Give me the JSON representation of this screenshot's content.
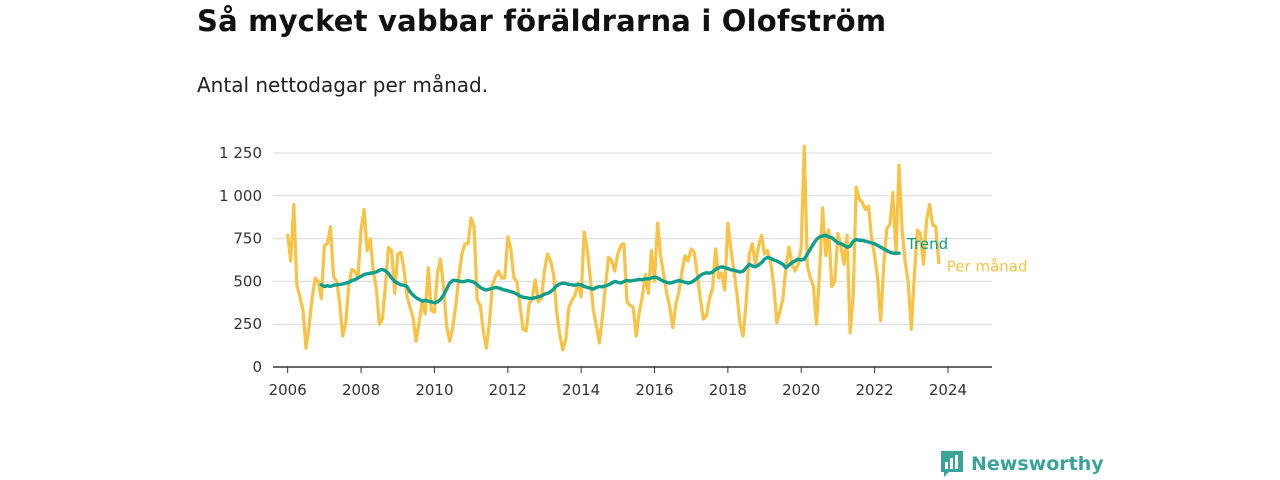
{
  "header": {
    "title": "Så mycket vabbar föräldrarna i Olofström",
    "subtitle": "Antal nettodagar per månad."
  },
  "brand": {
    "name": "Newsworthy",
    "icon": "bar-chart-icon",
    "color": "#3aa39a"
  },
  "colors": {
    "monthly": "#f9c244",
    "trend": "#0f9e8b",
    "grid": "#dcdcdc",
    "axis": "#333333"
  },
  "chart_data": {
    "type": "line",
    "title": "Så mycket vabbar föräldrarna i Olofström",
    "subtitle": "Antal nettodagar per månad.",
    "xlabel": "",
    "ylabel": "",
    "ylim": [
      0,
      1250
    ],
    "xlim": [
      2005.6,
      2025.2
    ],
    "yticks": [
      0,
      250,
      500,
      750,
      1000,
      1250
    ],
    "ytick_labels": [
      "0",
      "250",
      "500",
      "750",
      "1 000",
      "1 250"
    ],
    "xticks": [
      2006,
      2008,
      2010,
      2012,
      2014,
      2016,
      2018,
      2020,
      2022,
      2024
    ],
    "xtick_labels": [
      "2006",
      "2008",
      "2010",
      "2012",
      "2014",
      "2016",
      "2018",
      "2020",
      "2022",
      "2024"
    ],
    "grid": true,
    "series": [
      {
        "name": "Per månad",
        "x_start": 2006.0,
        "step": 0.08333,
        "values": [
          770,
          620,
          950,
          480,
          410,
          330,
          110,
          240,
          400,
          520,
          500,
          400,
          710,
          720,
          820,
          530,
          500,
          380,
          180,
          260,
          480,
          570,
          560,
          520,
          800,
          920,
          680,
          750,
          560,
          460,
          250,
          280,
          480,
          700,
          680,
          430,
          660,
          670,
          580,
          420,
          350,
          290,
          150,
          260,
          380,
          310,
          580,
          330,
          320,
          550,
          630,
          460,
          240,
          150,
          230,
          360,
          530,
          660,
          720,
          720,
          870,
          820,
          390,
          360,
          210,
          110,
          260,
          480,
          530,
          560,
          520,
          520,
          760,
          690,
          520,
          500,
          360,
          220,
          210,
          370,
          400,
          510,
          380,
          400,
          560,
          660,
          620,
          540,
          320,
          190,
          100,
          160,
          350,
          390,
          420,
          490,
          410,
          790,
          690,
          520,
          330,
          240,
          140,
          300,
          480,
          640,
          620,
          560,
          660,
          710,
          720,
          380,
          360,
          350,
          180,
          320,
          410,
          540,
          430,
          680,
          500,
          840,
          650,
          540,
          430,
          350,
          230,
          370,
          440,
          560,
          650,
          620,
          690,
          670,
          540,
          400,
          280,
          300,
          400,
          460,
          690,
          520,
          550,
          450,
          840,
          690,
          560,
          420,
          250,
          180,
          380,
          660,
          720,
          600,
          700,
          770,
          660,
          680,
          610,
          480,
          260,
          320,
          400,
          580,
          700,
          600,
          560,
          600,
          700,
          1290,
          590,
          520,
          470,
          250,
          560,
          930,
          650,
          800,
          470,
          500,
          780,
          700,
          600,
          770,
          200,
          420,
          1050,
          980,
          960,
          920,
          940,
          760,
          650,
          520,
          270,
          600,
          810,
          830,
          1020,
          660,
          1180,
          800,
          610,
          500,
          220,
          530,
          800,
          780,
          600,
          860,
          950,
          830,
          820,
          610
        ]
      },
      {
        "name": "Trend",
        "x_start": 2006.917,
        "step": 0.08333,
        "values": [
          480,
          470,
          475,
          470,
          478,
          480,
          482,
          485,
          490,
          495,
          505,
          510,
          520,
          530,
          540,
          545,
          548,
          550,
          555,
          565,
          570,
          562,
          545,
          520,
          500,
          490,
          480,
          478,
          470,
          440,
          420,
          405,
          395,
          385,
          390,
          385,
          380,
          375,
          380,
          395,
          420,
          455,
          490,
          505,
          505,
          502,
          498,
          500,
          505,
          500,
          495,
          480,
          465,
          455,
          450,
          455,
          460,
          465,
          462,
          455,
          450,
          445,
          440,
          435,
          425,
          415,
          408,
          405,
          402,
          400,
          405,
          410,
          415,
          425,
          430,
          440,
          455,
          475,
          485,
          490,
          488,
          482,
          480,
          478,
          482,
          480,
          470,
          465,
          460,
          455,
          465,
          470,
          468,
          475,
          480,
          490,
          500,
          495,
          490,
          500,
          505,
          502,
          505,
          508,
          512,
          510,
          515,
          515,
          520,
          525,
          520,
          510,
          500,
          495,
          490,
          495,
          500,
          505,
          500,
          495,
          490,
          495,
          505,
          520,
          535,
          545,
          550,
          548,
          555,
          570,
          580,
          585,
          580,
          575,
          568,
          565,
          560,
          555,
          560,
          580,
          600,
          590,
          585,
          595,
          610,
          630,
          640,
          635,
          625,
          620,
          610,
          600,
          580,
          595,
          610,
          620,
          630,
          625,
          630,
          660,
          690,
          720,
          745,
          760,
          765,
          770,
          760,
          755,
          740,
          725,
          720,
          710,
          700,
          705,
          735,
          745,
          740,
          740,
          735,
          730,
          725,
          720,
          710,
          700,
          690,
          680,
          670,
          665,
          665,
          665
        ]
      }
    ]
  }
}
